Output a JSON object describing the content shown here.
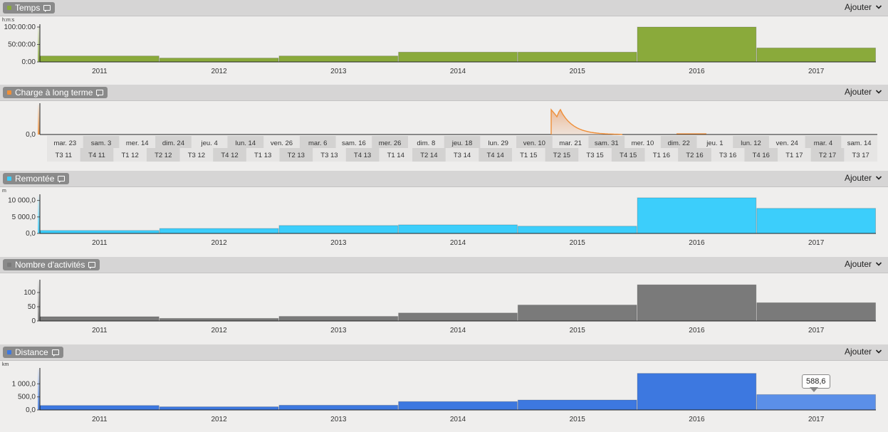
{
  "years": [
    "2011",
    "2012",
    "2013",
    "2014",
    "2015",
    "2016",
    "2017"
  ],
  "add_label": "Ajouter",
  "panels": [
    {
      "id": "temps",
      "title": "Temps",
      "color": "#8aaa3b",
      "dot": "#8aaa3b",
      "unit": "h:m:s",
      "kind": "bar",
      "chart_data": {
        "type": "bar",
        "title": "Temps",
        "ylabel": "h:m:s",
        "categories": [
          "2011",
          "2012",
          "2013",
          "2014",
          "2015",
          "2016",
          "2017"
        ],
        "values_hours": [
          17,
          11,
          17,
          28,
          28,
          100,
          40
        ],
        "ylim": [
          0,
          100
        ],
        "ticks": [
          {
            "v": 0,
            "label": "0:00"
          },
          {
            "v": 50,
            "label": "50:00:00"
          },
          {
            "v": 100,
            "label": "100:00:00"
          }
        ]
      }
    },
    {
      "id": "charge",
      "title": "Charge à long terme",
      "color": "#ef8f38",
      "dot": "#ef8f38",
      "unit": "",
      "kind": "area",
      "chart_data": {
        "type": "area",
        "title": "Charge à long terme",
        "ticks": [
          {
            "v": 0,
            "label": "0,0"
          }
        ],
        "x_labels": [
          "mar. 23",
          "sam. 3",
          "mer. 14",
          "dim. 24",
          "jeu. 4",
          "lun. 14",
          "ven. 26",
          "mar. 6",
          "sam. 16",
          "mer. 26",
          "dim. 8",
          "jeu. 18",
          "lun. 29",
          "ven. 10",
          "mar. 21",
          "sam. 31",
          "mer. 10",
          "dim. 22",
          "jeu. 1",
          "lun. 12",
          "ven. 24",
          "mar. 4",
          "sam. 14"
        ],
        "quarters": [
          "T3 11",
          "T4 11",
          "T1 12",
          "T2 12",
          "T3 12",
          "T4 12",
          "T1 13",
          "T2 13",
          "T3 13",
          "T4 13",
          "T1 14",
          "T2 14",
          "T3 14",
          "T4 14",
          "T1 15",
          "T2 15",
          "T3 15",
          "T4 15",
          "T1 16",
          "T2 16",
          "T3 16",
          "T4 16",
          "T1 17",
          "T2 17",
          "T3 17"
        ]
      }
    },
    {
      "id": "remontee",
      "title": "Remontée",
      "color": "#3ccefb",
      "dot": "#3ccefb",
      "unit": "m",
      "kind": "bar",
      "chart_data": {
        "type": "bar",
        "title": "Remontée",
        "ylabel": "m",
        "categories": [
          "2011",
          "2012",
          "2013",
          "2014",
          "2015",
          "2016",
          "2017"
        ],
        "values": [
          900,
          1500,
          2400,
          2600,
          2200,
          10800,
          7600
        ],
        "ylim": [
          0,
          11000
        ],
        "ticks": [
          {
            "v": 0,
            "label": "0,0"
          },
          {
            "v": 5000,
            "label": "5 000,0"
          },
          {
            "v": 10000,
            "label": "10 000,0"
          }
        ]
      }
    },
    {
      "id": "nombre",
      "title": "Nombre d'activités",
      "color": "#7a7a7a",
      "dot": "#7a7a7a",
      "unit": "",
      "kind": "bar",
      "chart_data": {
        "type": "bar",
        "title": "Nombre d'activités",
        "categories": [
          "2011",
          "2012",
          "2013",
          "2014",
          "2015",
          "2016",
          "2017"
        ],
        "values": [
          15,
          9,
          16,
          28,
          56,
          127,
          64
        ],
        "ylim": [
          0,
          135
        ],
        "ticks": [
          {
            "v": 0,
            "label": "0"
          },
          {
            "v": 50,
            "label": "50"
          },
          {
            "v": 100,
            "label": "100"
          }
        ]
      }
    },
    {
      "id": "distance",
      "title": "Distance",
      "color": "#3d78e0",
      "dot": "#3d78e0",
      "unit": "km",
      "kind": "bar",
      "highlight_index": 6,
      "highlight_color": "#5b8fe8",
      "tooltip": "588,6",
      "chart_data": {
        "type": "bar",
        "title": "Distance",
        "ylabel": "km",
        "categories": [
          "2011",
          "2012",
          "2013",
          "2014",
          "2015",
          "2016",
          "2017"
        ],
        "values": [
          170,
          120,
          180,
          320,
          380,
          1400,
          588.6
        ],
        "ylim": [
          0,
          1500
        ],
        "ticks": [
          {
            "v": 0,
            "label": "0,0"
          },
          {
            "v": 500,
            "label": "500,0"
          },
          {
            "v": 1000,
            "label": "1 000,0"
          }
        ]
      }
    }
  ]
}
